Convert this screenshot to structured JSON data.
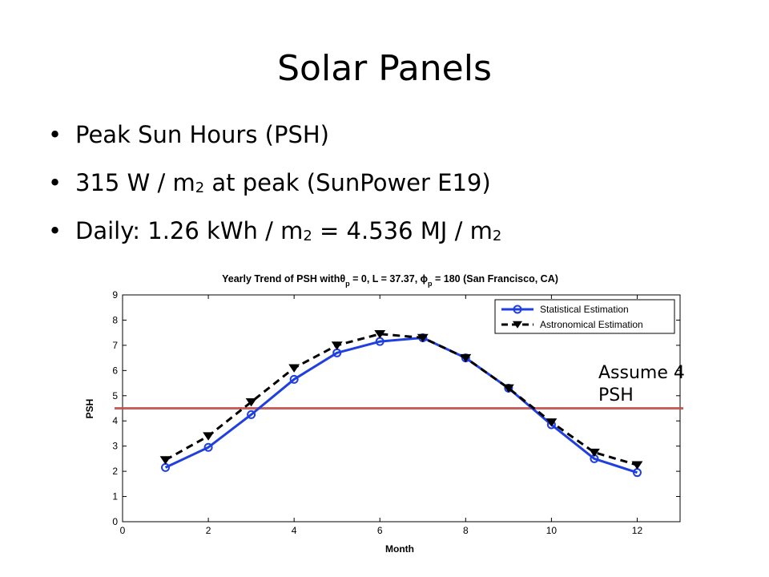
{
  "slide": {
    "title": "Solar Panels",
    "bullets": [
      {
        "text": "Peak Sun Hours (PSH)"
      },
      {
        "before": "315 W / m",
        "sub": "2",
        "after": " at peak (SunPower E19)"
      },
      {
        "before": "Daily: 1.26 kWh / m",
        "sub": "2",
        "mid": " = 4.536 MJ / m",
        "sub2": "2"
      }
    ],
    "bullet_symbol": "•",
    "annotation": "Assume 4 PSH"
  },
  "chart_data": {
    "type": "line",
    "title": {
      "pre_theta": "Yearly Trend of PSH with",
      "theta_symbol": "θ",
      "theta_sub": "p",
      "mid": " = 0, L = 37.37, ",
      "phi_symbol": "ϕ",
      "phi_sub": "p",
      "post": " = 180 (San Francisco, CA)"
    },
    "xlabel": "Month",
    "ylabel": "PSH",
    "xlim": [
      0,
      13
    ],
    "ylim": [
      0,
      9
    ],
    "xticks": [
      "0",
      "2",
      "4",
      "6",
      "8",
      "10",
      "12"
    ],
    "yticks": [
      "0",
      "1",
      "2",
      "3",
      "4",
      "5",
      "6",
      "7",
      "8",
      "9"
    ],
    "grid": false,
    "legend_position": "top-right",
    "x": [
      1,
      2,
      3,
      4,
      5,
      6,
      7,
      8,
      9,
      10,
      11,
      12
    ],
    "series": [
      {
        "name": "Statistical Estimation",
        "values": [
          2.15,
          2.95,
          4.25,
          5.65,
          6.7,
          7.15,
          7.3,
          6.5,
          5.3,
          3.85,
          2.5,
          1.95
        ],
        "color": "#1f3fe0",
        "marker": "circle",
        "dash": "solid"
      },
      {
        "name": "Astronomical Estimation",
        "values": [
          2.45,
          3.4,
          4.75,
          6.1,
          7.0,
          7.45,
          7.3,
          6.5,
          5.3,
          3.95,
          2.75,
          2.25
        ],
        "color": "#000000",
        "marker": "triangle-down",
        "dash": "dashed"
      }
    ],
    "reference_line": {
      "y": 4.5,
      "color": "#c0504d"
    }
  }
}
